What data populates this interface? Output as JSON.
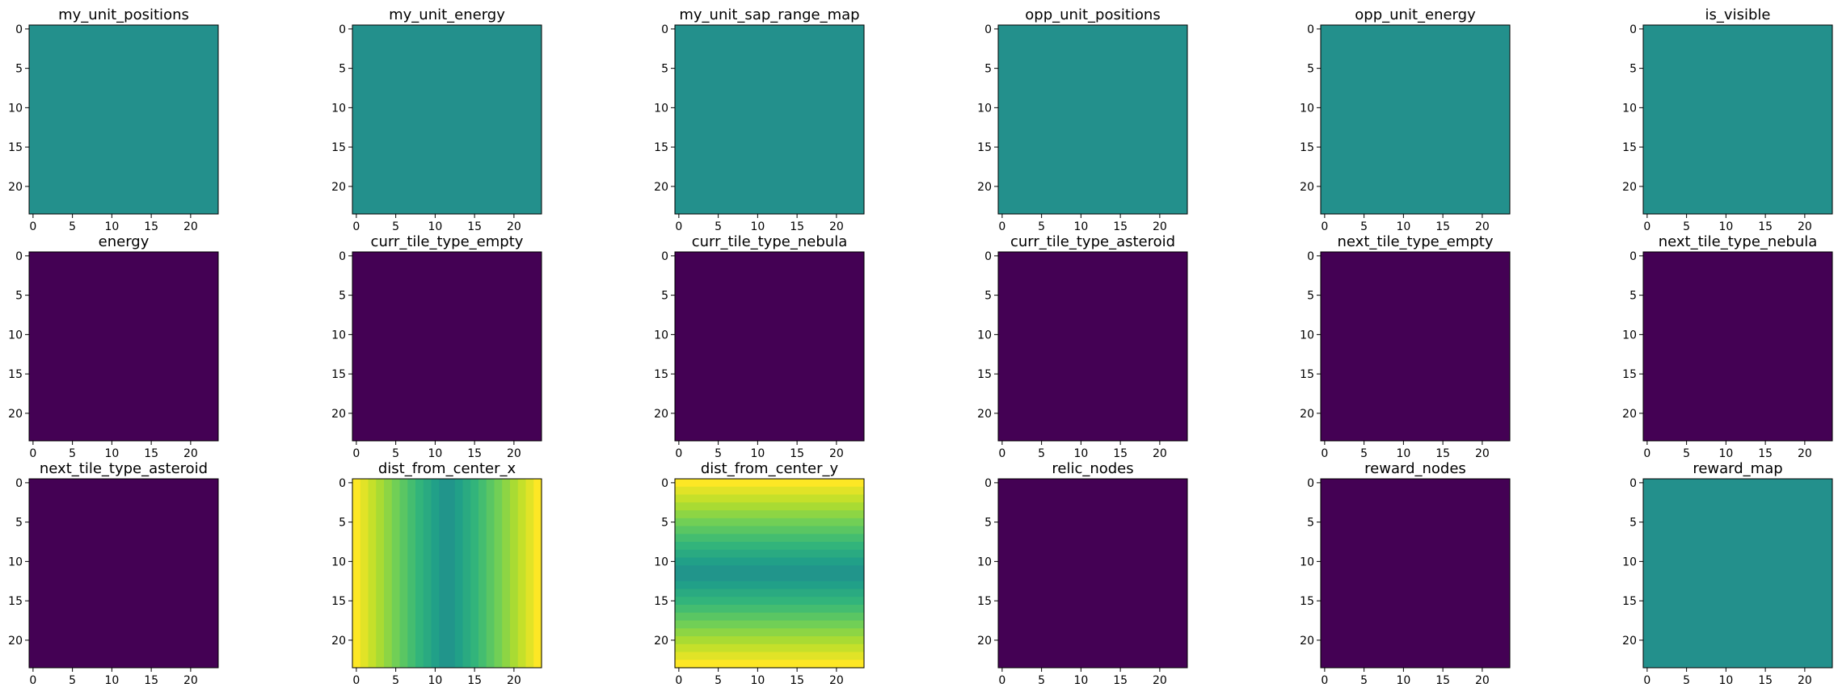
{
  "chart_data": [
    {
      "type": "heatmap",
      "title": "my_unit_positions",
      "grid_size": 24,
      "pattern": "uniform",
      "level": 0.5,
      "xticks": [
        0,
        5,
        10,
        15,
        20
      ],
      "yticks": [
        0,
        5,
        10,
        15,
        20
      ]
    },
    {
      "type": "heatmap",
      "title": "my_unit_energy",
      "grid_size": 24,
      "pattern": "uniform",
      "level": 0.5,
      "xticks": [
        0,
        5,
        10,
        15,
        20
      ],
      "yticks": [
        0,
        5,
        10,
        15,
        20
      ]
    },
    {
      "type": "heatmap",
      "title": "my_unit_sap_range_map",
      "grid_size": 24,
      "pattern": "uniform",
      "level": 0.5,
      "xticks": [
        0,
        5,
        10,
        15,
        20
      ],
      "yticks": [
        0,
        5,
        10,
        15,
        20
      ]
    },
    {
      "type": "heatmap",
      "title": "opp_unit_positions",
      "grid_size": 24,
      "pattern": "uniform",
      "level": 0.5,
      "xticks": [
        0,
        5,
        10,
        15,
        20
      ],
      "yticks": [
        0,
        5,
        10,
        15,
        20
      ]
    },
    {
      "type": "heatmap",
      "title": "opp_unit_energy",
      "grid_size": 24,
      "pattern": "uniform",
      "level": 0.5,
      "xticks": [
        0,
        5,
        10,
        15,
        20
      ],
      "yticks": [
        0,
        5,
        10,
        15,
        20
      ]
    },
    {
      "type": "heatmap",
      "title": "is_visible",
      "grid_size": 24,
      "pattern": "uniform",
      "level": 0.5,
      "xticks": [
        0,
        5,
        10,
        15,
        20
      ],
      "yticks": [
        0,
        5,
        10,
        15,
        20
      ]
    },
    {
      "type": "heatmap",
      "title": "energy",
      "grid_size": 24,
      "pattern": "uniform",
      "level": 0.0,
      "xticks": [
        0,
        5,
        10,
        15,
        20
      ],
      "yticks": [
        0,
        5,
        10,
        15,
        20
      ]
    },
    {
      "type": "heatmap",
      "title": "curr_tile_type_empty",
      "grid_size": 24,
      "pattern": "uniform",
      "level": 0.0,
      "xticks": [
        0,
        5,
        10,
        15,
        20
      ],
      "yticks": [
        0,
        5,
        10,
        15,
        20
      ]
    },
    {
      "type": "heatmap",
      "title": "curr_tile_type_nebula",
      "grid_size": 24,
      "pattern": "uniform",
      "level": 0.0,
      "xticks": [
        0,
        5,
        10,
        15,
        20
      ],
      "yticks": [
        0,
        5,
        10,
        15,
        20
      ]
    },
    {
      "type": "heatmap",
      "title": "curr_tile_type_asteroid",
      "grid_size": 24,
      "pattern": "uniform",
      "level": 0.0,
      "xticks": [
        0,
        5,
        10,
        15,
        20
      ],
      "yticks": [
        0,
        5,
        10,
        15,
        20
      ]
    },
    {
      "type": "heatmap",
      "title": "next_tile_type_empty",
      "grid_size": 24,
      "pattern": "uniform",
      "level": 0.0,
      "xticks": [
        0,
        5,
        10,
        15,
        20
      ],
      "yticks": [
        0,
        5,
        10,
        15,
        20
      ]
    },
    {
      "type": "heatmap",
      "title": "next_tile_type_nebula",
      "grid_size": 24,
      "pattern": "uniform",
      "level": 0.0,
      "xticks": [
        0,
        5,
        10,
        15,
        20
      ],
      "yticks": [
        0,
        5,
        10,
        15,
        20
      ]
    },
    {
      "type": "heatmap",
      "title": "next_tile_type_asteroid",
      "grid_size": 24,
      "pattern": "uniform",
      "level": 0.0,
      "xticks": [
        0,
        5,
        10,
        15,
        20
      ],
      "yticks": [
        0,
        5,
        10,
        15,
        20
      ]
    },
    {
      "type": "heatmap",
      "title": "dist_from_center_x",
      "grid_size": 24,
      "pattern": "columns",
      "xticks": [
        0,
        5,
        10,
        15,
        20
      ],
      "yticks": [
        0,
        5,
        10,
        15,
        20
      ]
    },
    {
      "type": "heatmap",
      "title": "dist_from_center_y",
      "grid_size": 24,
      "pattern": "rows",
      "xticks": [
        0,
        5,
        10,
        15,
        20
      ],
      "yticks": [
        0,
        5,
        10,
        15,
        20
      ]
    },
    {
      "type": "heatmap",
      "title": "relic_nodes",
      "grid_size": 24,
      "pattern": "uniform",
      "level": 0.0,
      "xticks": [
        0,
        5,
        10,
        15,
        20
      ],
      "yticks": [
        0,
        5,
        10,
        15,
        20
      ]
    },
    {
      "type": "heatmap",
      "title": "reward_nodes",
      "grid_size": 24,
      "pattern": "uniform",
      "level": 0.0,
      "xticks": [
        0,
        5,
        10,
        15,
        20
      ],
      "yticks": [
        0,
        5,
        10,
        15,
        20
      ]
    },
    {
      "type": "heatmap",
      "title": "reward_map",
      "grid_size": 24,
      "pattern": "uniform",
      "level": 0.5,
      "xticks": [
        0,
        5,
        10,
        15,
        20
      ],
      "yticks": [
        0,
        5,
        10,
        15,
        20
      ]
    }
  ],
  "colormap": [
    "#440154",
    "#482878",
    "#3e4a89",
    "#31688e",
    "#26828e",
    "#1f9e89",
    "#35b779",
    "#6ece58",
    "#b5de2b",
    "#fde725"
  ]
}
